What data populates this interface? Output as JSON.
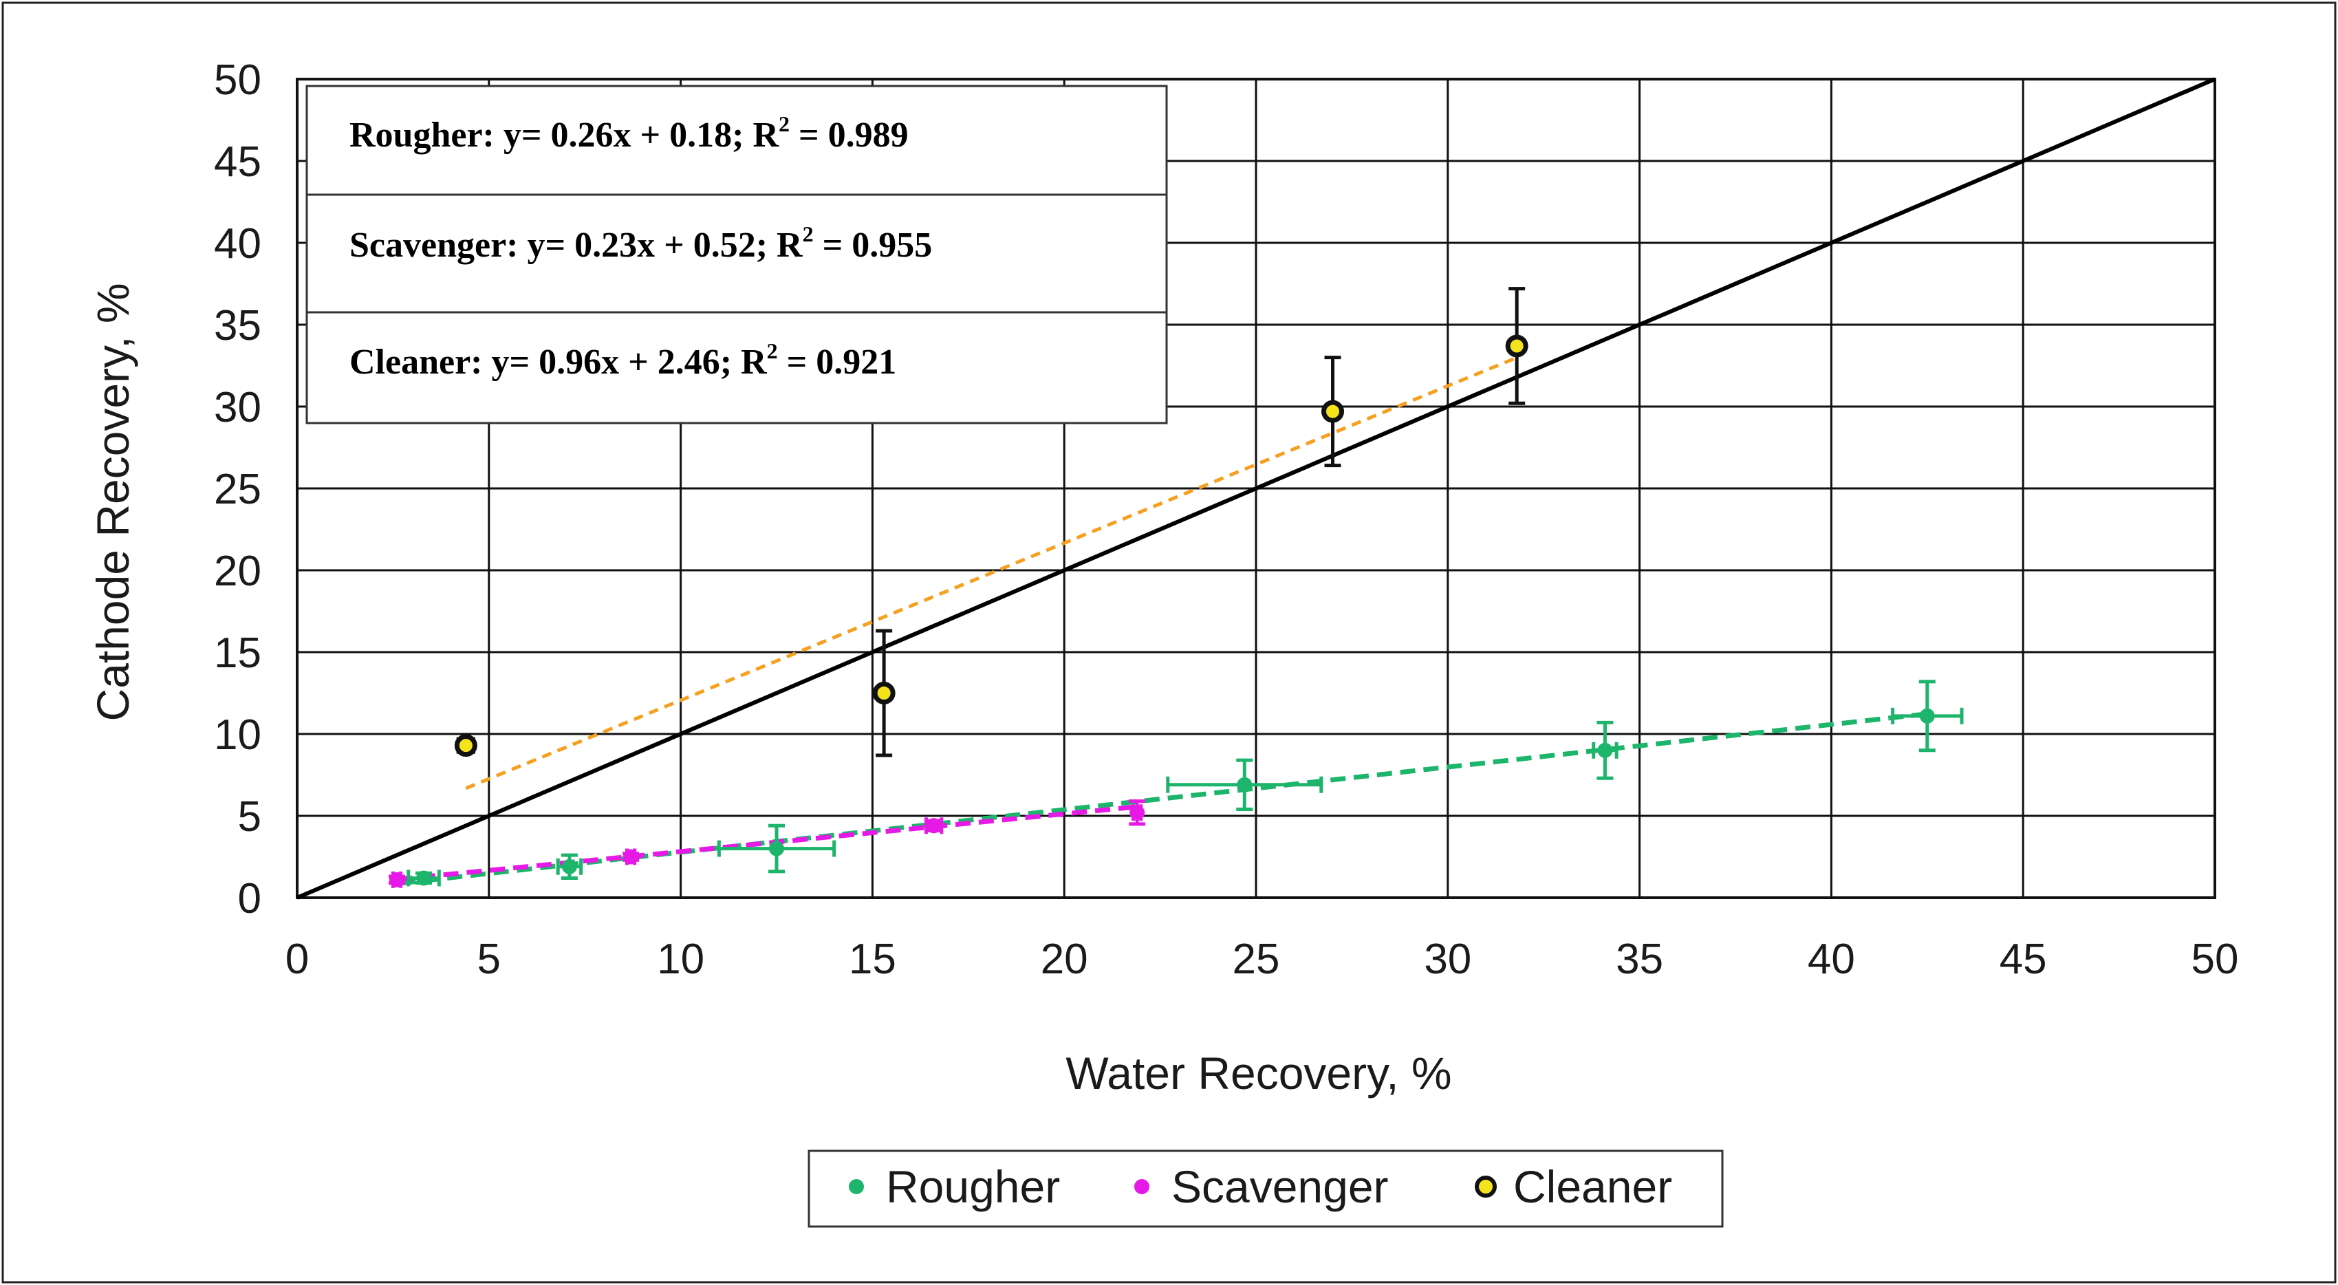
{
  "chart_data": {
    "type": "scatter",
    "title": "",
    "xlabel": "Water Recovery,  %",
    "ylabel": "Cathode Recovery,  %",
    "xlim": [
      0,
      50
    ],
    "ylim": [
      0,
      50
    ],
    "grid": true,
    "x_ticks": [
      0,
      5,
      10,
      15,
      20,
      25,
      30,
      35,
      40,
      45,
      50
    ],
    "y_ticks": [
      0,
      5,
      10,
      15,
      20,
      25,
      30,
      35,
      40,
      45,
      50
    ],
    "x_tick_labels": [
      "0",
      "5",
      "10",
      "15",
      "20",
      "25",
      "30",
      "35",
      "40",
      "45",
      "50"
    ],
    "y_tick_labels": [
      "0",
      "5",
      "10",
      "15",
      "20",
      "25",
      "30",
      "35",
      "40",
      "45",
      "50"
    ],
    "reference_line": {
      "name": "y = x",
      "x": [
        0,
        50
      ],
      "y": [
        0,
        50
      ],
      "color": "#000000"
    },
    "series": [
      {
        "name": "Rougher",
        "color": "#1db56b",
        "points": [
          {
            "x": 3.3,
            "y": 1.2,
            "xerr": 0.4,
            "yerr": 0.3
          },
          {
            "x": 7.1,
            "y": 1.9,
            "xerr": 0.3,
            "yerr": 0.7
          },
          {
            "x": 12.5,
            "y": 3.0,
            "xerr": 1.5,
            "yerr": 1.4
          },
          {
            "x": 24.7,
            "y": 6.9,
            "xerr": 2.0,
            "yerr": 1.5
          },
          {
            "x": 34.1,
            "y": 9.0,
            "xerr": 0.3,
            "yerr": 1.7
          },
          {
            "x": 42.5,
            "y": 11.1,
            "xerr": 0.9,
            "yerr": 2.1
          }
        ],
        "fit": {
          "x": [
            2.7,
            42.5
          ],
          "equation": "Rougher: y= 0.26x + 0.18; R",
          "r2_value": " = 0.989"
        }
      },
      {
        "name": "Scavenger",
        "color": "#e619e6",
        "points": [
          {
            "x": 2.6,
            "y": 1.1,
            "xerr": 0.1,
            "yerr": 0.2
          },
          {
            "x": 8.7,
            "y": 2.5,
            "xerr": 0.1,
            "yerr": 0.2
          },
          {
            "x": 16.6,
            "y": 4.4,
            "xerr": 0.2,
            "yerr": 0.3
          },
          {
            "x": 21.9,
            "y": 5.2,
            "xerr": 0.1,
            "yerr": 0.7
          }
        ],
        "fit": {
          "x": [
            2.6,
            21.9
          ],
          "equation": "Scavenger: y= 0.23x + 0.52; R",
          "r2_value": " = 0.955"
        }
      },
      {
        "name": "Cleaner",
        "color": "#f5e31c",
        "points": [
          {
            "x": 4.4,
            "y": 9.3,
            "xerr": 0.2,
            "yerr": 0.3
          },
          {
            "x": 15.3,
            "y": 12.5,
            "xerr": 0,
            "yerr": 3.8
          },
          {
            "x": 27.0,
            "y": 29.7,
            "xerr": 0,
            "yerr": 3.3
          },
          {
            "x": 31.8,
            "y": 33.7,
            "xerr": 0,
            "yerr": 3.5
          }
        ],
        "fit": {
          "x": [
            4.4,
            31.8
          ],
          "equation": "Cleaner: y= 0.96x + 2.46; R",
          "r2_value": " = 0.921",
          "color": "#f5a020"
        }
      }
    ],
    "equations": [
      {
        "name": "rougher",
        "slope": 0.26,
        "intercept": 0.18
      },
      {
        "name": "scavenger",
        "slope": 0.23,
        "intercept": 0.52
      },
      {
        "name": "cleaner",
        "slope": 0.96,
        "intercept": 2.46
      }
    ],
    "equation_superscript": "2",
    "legend": {
      "position": "bottom-center",
      "entries": [
        "Rougher",
        "Scavenger",
        "Cleaner"
      ]
    }
  }
}
